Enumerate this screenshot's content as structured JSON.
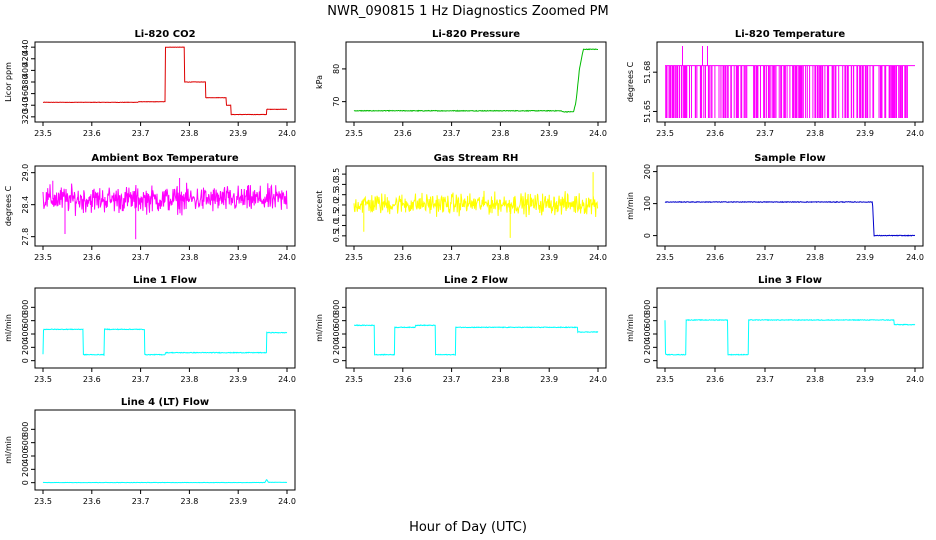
{
  "figure": {
    "title": "NWR_090815  1 Hz Diagnostics Zoomed PM",
    "xlabel": "Hour of Day (UTC)"
  },
  "chart_data": [
    {
      "type": "line",
      "title": "Li-820 CO2",
      "ylabel": "Licor ppm",
      "color": "#dd0000",
      "xticks": [
        "23.5",
        "23.6",
        "23.7",
        "23.8",
        "23.9",
        "24.0"
      ],
      "yticks": [
        "320",
        "340",
        "360",
        "380",
        "400",
        "420",
        "440"
      ],
      "xlim": [
        23.5,
        24.0
      ],
      "ylim": [
        318,
        442
      ],
      "style": "step",
      "noise": 0.3,
      "points": [
        [
          23.5,
          345
        ],
        [
          23.695,
          345
        ],
        [
          23.695,
          346
        ],
        [
          23.75,
          346
        ],
        [
          23.75,
          440
        ],
        [
          23.79,
          440
        ],
        [
          23.79,
          380
        ],
        [
          23.833,
          380
        ],
        [
          23.833,
          353
        ],
        [
          23.875,
          353
        ],
        [
          23.875,
          340
        ],
        [
          23.885,
          340
        ],
        [
          23.885,
          324
        ],
        [
          23.958,
          324
        ],
        [
          23.958,
          333
        ],
        [
          24.0,
          333
        ]
      ]
    },
    {
      "type": "line",
      "title": "Li-820 Pressure",
      "ylabel": "kPa",
      "color": "#00bb00",
      "xticks": [
        "23.5",
        "23.6",
        "23.7",
        "23.8",
        "23.9",
        "24.0"
      ],
      "yticks": [
        "70",
        "80"
      ],
      "xlim": [
        23.5,
        24.0
      ],
      "ylim": [
        65,
        87
      ],
      "style": "step",
      "noise": 0.1,
      "points": [
        [
          23.5,
          67.2
        ],
        [
          23.925,
          67.2
        ],
        [
          23.927,
          66.9
        ],
        [
          23.95,
          66.9
        ],
        [
          23.955,
          70
        ],
        [
          23.962,
          80
        ],
        [
          23.97,
          86
        ],
        [
          24.0,
          86
        ]
      ]
    },
    {
      "type": "line",
      "title": "Li-820 Temperature",
      "ylabel": "degrees C",
      "color": "#ff00ff",
      "xticks": [
        "23.5",
        "23.6",
        "23.7",
        "23.8",
        "23.9",
        "24.0"
      ],
      "yticks": [
        "51.65",
        "51.68"
      ],
      "xlim": [
        23.5,
        24.0
      ],
      "ylim": [
        51.645,
        51.7
      ],
      "style": "binary",
      "levels": [
        51.645,
        51.685
      ],
      "spikes": [
        [
          23.535,
          51.7
        ],
        [
          23.575,
          51.7
        ],
        [
          23.585,
          51.7
        ]
      ]
    },
    {
      "type": "line",
      "title": "Ambient Box Temperature",
      "ylabel": "degrees C",
      "color": "#ff00ff",
      "xticks": [
        "23.5",
        "23.6",
        "23.7",
        "23.8",
        "23.9",
        "24.0"
      ],
      "yticks": [
        "27.8",
        "28.4",
        "29.0"
      ],
      "xlim": [
        23.5,
        24.0
      ],
      "ylim": [
        27.7,
        29.05
      ],
      "style": "noise",
      "mean": 28.5,
      "spread": 0.12,
      "spikes": [
        [
          23.545,
          27.85
        ],
        [
          23.69,
          27.75
        ],
        [
          23.52,
          28.85
        ],
        [
          23.78,
          28.9
        ]
      ]
    },
    {
      "type": "line",
      "title": "Gas Stream RH",
      "ylabel": "percent",
      "color": "#ffff00",
      "xticks": [
        "23.5",
        "23.6",
        "23.7",
        "23.8",
        "23.9",
        "24.0"
      ],
      "yticks": [
        "0.5",
        "1.0",
        "1.5",
        "2.0",
        "2.5",
        "3.0",
        "3.5"
      ],
      "xlim": [
        23.5,
        24.0
      ],
      "ylim": [
        0.2,
        3.7
      ],
      "style": "noise",
      "mean": 2.05,
      "spread": 0.25,
      "spikes": [
        [
          23.82,
          0.4
        ],
        [
          23.99,
          3.6
        ],
        [
          23.52,
          0.7
        ]
      ]
    },
    {
      "type": "line",
      "title": "Sample Flow",
      "ylabel": "ml/min",
      "color": "#0000cc",
      "xticks": [
        "23.5",
        "23.6",
        "23.7",
        "23.8",
        "23.9",
        "24.0"
      ],
      "yticks": [
        "0",
        "100",
        "200"
      ],
      "xlim": [
        23.5,
        24.0
      ],
      "ylim": [
        -20,
        205
      ],
      "style": "step",
      "noise": 1.0,
      "points": [
        [
          23.5,
          105
        ],
        [
          23.915,
          105
        ],
        [
          23.918,
          0
        ],
        [
          24.0,
          0
        ]
      ]
    },
    {
      "type": "line",
      "title": "Line 1 Flow",
      "ylabel": "ml/min",
      "color": "#00ffff",
      "xticks": [
        "23.5",
        "23.6",
        "23.7",
        "23.8",
        "23.9",
        "24.0"
      ],
      "yticks": [
        "0",
        "200",
        "400",
        "600",
        "800"
      ],
      "xlim": [
        23.5,
        24.0
      ],
      "ylim": [
        -50,
        1030
      ],
      "style": "step",
      "noise": 5,
      "points": [
        [
          23.5,
          100
        ],
        [
          23.501,
          470
        ],
        [
          23.582,
          470
        ],
        [
          23.582,
          90
        ],
        [
          23.625,
          90
        ],
        [
          23.625,
          470
        ],
        [
          23.708,
          470
        ],
        [
          23.708,
          90
        ],
        [
          23.75,
          90
        ],
        [
          23.75,
          120
        ],
        [
          23.958,
          120
        ],
        [
          23.958,
          420
        ],
        [
          24.0,
          420
        ]
      ]
    },
    {
      "type": "line",
      "title": "Line 2 Flow",
      "ylabel": "ml/min",
      "color": "#00ffff",
      "xticks": [
        "23.5",
        "23.6",
        "23.7",
        "23.8",
        "23.9",
        "24.0"
      ],
      "yticks": [
        "0",
        "200",
        "400",
        "600",
        "800"
      ],
      "xlim": [
        23.5,
        24.0
      ],
      "ylim": [
        -50,
        1030
      ],
      "style": "step",
      "noise": 5,
      "points": [
        [
          23.5,
          530
        ],
        [
          23.542,
          530
        ],
        [
          23.542,
          90
        ],
        [
          23.583,
          90
        ],
        [
          23.583,
          500
        ],
        [
          23.625,
          500
        ],
        [
          23.625,
          530
        ],
        [
          23.667,
          530
        ],
        [
          23.667,
          90
        ],
        [
          23.708,
          90
        ],
        [
          23.708,
          500
        ],
        [
          23.958,
          500
        ],
        [
          23.958,
          430
        ],
        [
          24.0,
          430
        ]
      ]
    },
    {
      "type": "line",
      "title": "Line 3 Flow",
      "ylabel": "ml/min",
      "color": "#00ffff",
      "xticks": [
        "23.5",
        "23.6",
        "23.7",
        "23.8",
        "23.9",
        "24.0"
      ],
      "yticks": [
        "0",
        "200",
        "400",
        "600",
        "800"
      ],
      "xlim": [
        23.5,
        24.0
      ],
      "ylim": [
        -50,
        1030
      ],
      "style": "step",
      "noise": 5,
      "points": [
        [
          23.5,
          610
        ],
        [
          23.501,
          90
        ],
        [
          23.542,
          90
        ],
        [
          23.542,
          610
        ],
        [
          23.625,
          610
        ],
        [
          23.625,
          90
        ],
        [
          23.667,
          90
        ],
        [
          23.667,
          610
        ],
        [
          23.958,
          610
        ],
        [
          23.958,
          540
        ],
        [
          24.0,
          540
        ]
      ]
    },
    {
      "type": "line",
      "title": "Line 4 (LT) Flow",
      "ylabel": "ml/min",
      "color": "#00ffff",
      "xticks": [
        "23.5",
        "23.6",
        "23.7",
        "23.8",
        "23.9",
        "24.0"
      ],
      "yticks": [
        "0",
        "200",
        "400",
        "600",
        "800"
      ],
      "xlim": [
        23.5,
        24.0
      ],
      "ylim": [
        -50,
        1030
      ],
      "style": "step",
      "noise": 2,
      "points": [
        [
          23.5,
          2
        ],
        [
          23.955,
          2
        ],
        [
          23.958,
          50
        ],
        [
          23.962,
          5
        ],
        [
          24.0,
          5
        ]
      ]
    }
  ]
}
